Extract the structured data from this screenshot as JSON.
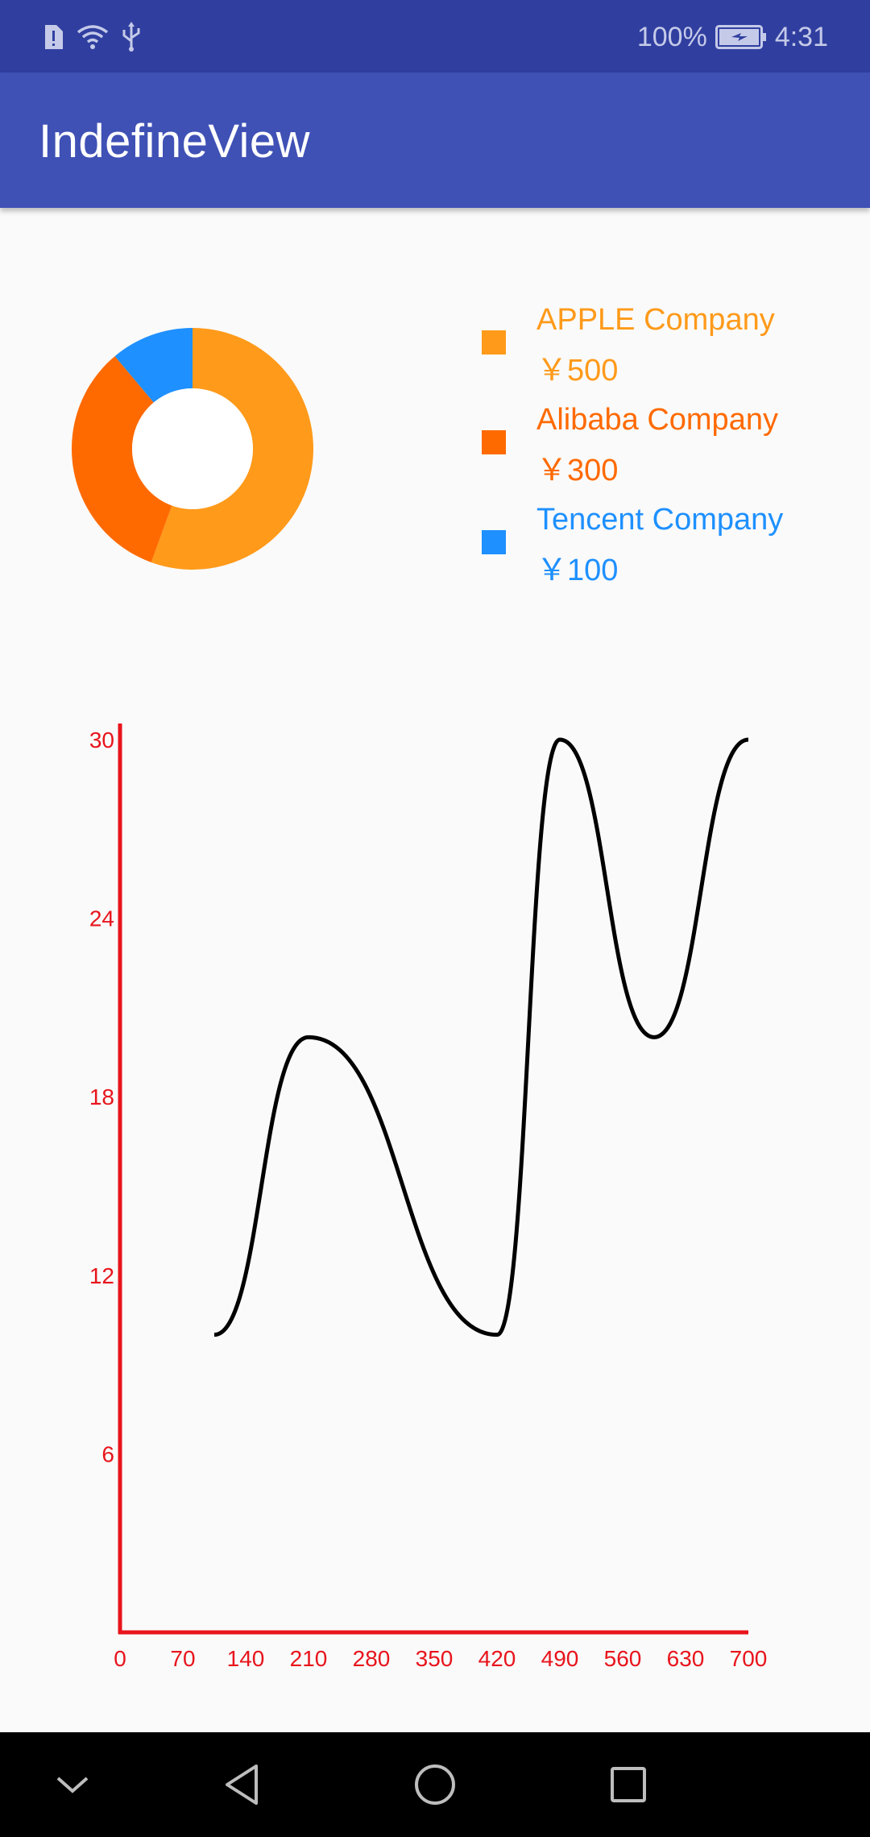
{
  "status_bar": {
    "battery_percent": "100%",
    "time": "4:31",
    "icons": [
      "sim-alert-icon",
      "wifi-icon",
      "usb-icon",
      "battery-charging-icon"
    ]
  },
  "app_bar": {
    "title": "IndefineView"
  },
  "pie_legend": [
    {
      "name": "APPLE Company",
      "value": "￥500",
      "color": "#ff9a1a"
    },
    {
      "name": "Alibaba Company",
      "value": "￥300",
      "color": "#ff6a00"
    },
    {
      "name": "Tencent Company",
      "value": "￥100",
      "color": "#1e90ff"
    }
  ],
  "chart_data": [
    {
      "type": "pie",
      "categories": [
        "APPLE Company",
        "Alibaba Company",
        "Tencent Company"
      ],
      "values": [
        500,
        300,
        100
      ],
      "colors": [
        "#ff9a1a",
        "#ff6a00",
        "#1e90ff"
      ],
      "title": "",
      "xlabel": "",
      "ylabel": ""
    },
    {
      "type": "line",
      "x": [
        105,
        210,
        420,
        490,
        595,
        700
      ],
      "series": [
        {
          "values": [
            10,
            20,
            10,
            30,
            20,
            30
          ],
          "color": "#000000"
        }
      ],
      "x_ticks": [
        "0",
        "70",
        "140",
        "210",
        "280",
        "350",
        "420",
        "490",
        "560",
        "630",
        "700"
      ],
      "y_ticks": [
        "6",
        "12",
        "18",
        "24",
        "30"
      ],
      "xlim": [
        0,
        700
      ],
      "ylim": [
        0,
        30
      ],
      "axis_color": "#e8141c",
      "grid": false,
      "title": "",
      "xlabel": "",
      "ylabel": ""
    }
  ],
  "nav_bar": {
    "icons": [
      "collapse-chevron-icon",
      "back-icon",
      "home-icon",
      "recents-icon"
    ]
  }
}
